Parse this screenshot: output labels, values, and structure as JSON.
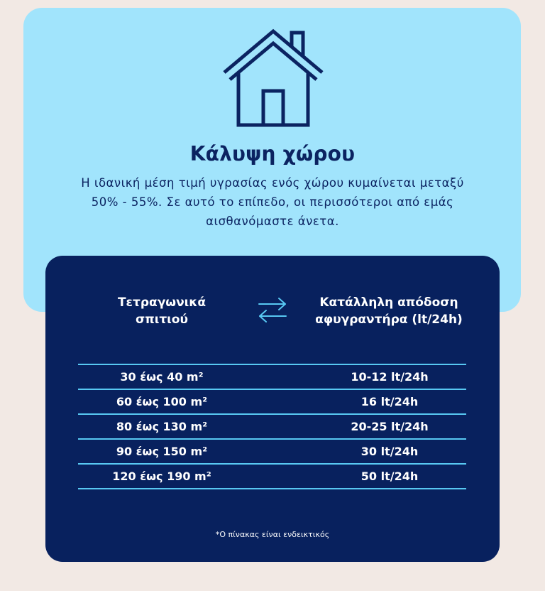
{
  "header": {
    "icon": "house-icon",
    "title": "Κάλυψη χώρου",
    "description_lines": [
      "Η ιδανική μέση τιμή υγρασίας ενός χώρου κυμαίνεται μεταξύ",
      "50% - 55%.  Σε αυτό το επίπεδο, οι περισσότεροι από εμάς",
      "αισθανόμαστε άνετα."
    ]
  },
  "table": {
    "col_area": [
      "Τετραγωνικά",
      "σπιτιού"
    ],
    "col_rate": [
      "Κατάλληλη απόδοση",
      "αφυγραντήρα (lt/24h)"
    ],
    "swap_icon": "swap-arrows-icon",
    "rows": [
      {
        "area": "30 έως 40 m²",
        "rate": "10-12 lt/24h"
      },
      {
        "area": "60 έως 100 m²",
        "rate": "16 lt/24h"
      },
      {
        "area": "80 έως 130 m²",
        "rate": "20-25 lt/24h"
      },
      {
        "area": "90 έως 150 m²",
        "rate": "30 lt/24h"
      },
      {
        "area": "120 έως 190 m²",
        "rate": "50 lt/24h"
      }
    ],
    "note": "*Ο πίνακας είναι ενδεικτικός"
  },
  "colors": {
    "page_bg": "#f2e9e4",
    "card_bg": "#a1e4fc",
    "panel_bg": "#08215e",
    "accent_line": "#58c8f2",
    "text_dark": "#0b2361"
  }
}
